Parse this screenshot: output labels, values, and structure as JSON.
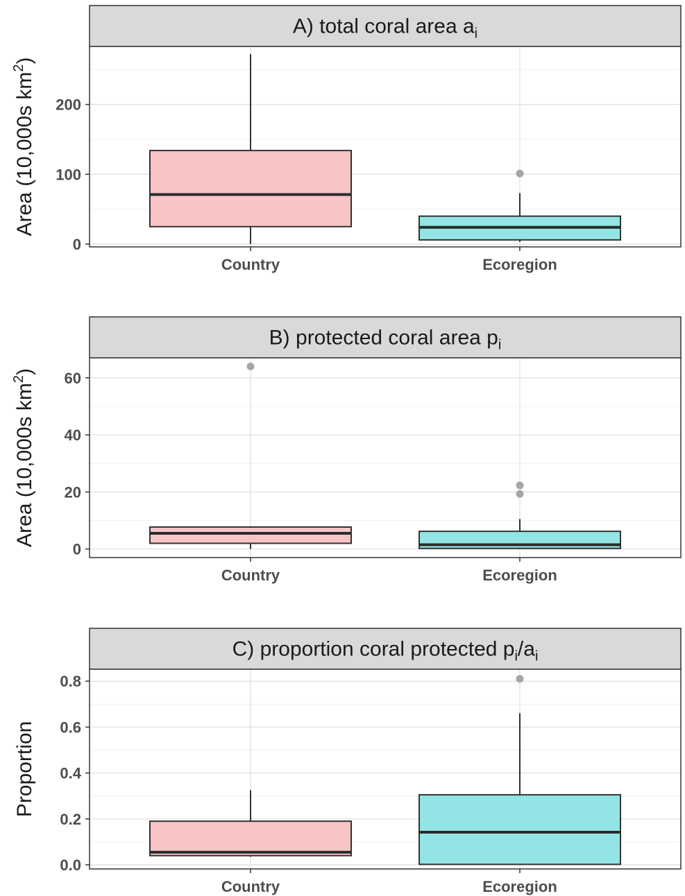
{
  "colors": {
    "Country": "#f8c4c6",
    "Ecoregion": "#93e4e4",
    "strip_fill": "#d9d9d9",
    "outlier": "#a6a6a6"
  },
  "chart_data": [
    {
      "type": "box",
      "title_main": "A) total coral area a",
      "title_sub": "i",
      "title_tail": "",
      "ylabel_main": "Area (10,000s km",
      "ylabel_sup": "2",
      "ylabel_tail": ")",
      "ylim": [
        -4,
        283
      ],
      "yticks": [
        0,
        100,
        200
      ],
      "ytick_labels": [
        "0",
        "100",
        "200"
      ],
      "categories": [
        "Country",
        "Ecoregion"
      ],
      "boxes": [
        {
          "category": "Country",
          "whisker_low": 0,
          "q1": 25,
          "median": 71,
          "q3": 134,
          "whisker_high": 272,
          "outliers": []
        },
        {
          "category": "Ecoregion",
          "whisker_low": 3,
          "q1": 6,
          "median": 24,
          "q3": 40,
          "whisker_high": 73,
          "outliers": [
            101
          ]
        }
      ]
    },
    {
      "type": "box",
      "title_main": "B) protected coral area p",
      "title_sub": "i",
      "title_tail": "",
      "ylabel_main": "Area (10,000s km",
      "ylabel_sup": "2",
      "ylabel_tail": ")",
      "ylim": [
        -3,
        67
      ],
      "yticks": [
        0,
        20,
        40,
        60
      ],
      "ytick_labels": [
        "0",
        "20",
        "40",
        "60"
      ],
      "categories": [
        "Country",
        "Ecoregion"
      ],
      "boxes": [
        {
          "category": "Country",
          "whisker_low": 0,
          "q1": 2,
          "median": 5.5,
          "q3": 7.7,
          "whisker_high": 7.7,
          "outliers": [
            64
          ]
        },
        {
          "category": "Ecoregion",
          "whisker_low": 0,
          "q1": 0.2,
          "median": 1.5,
          "q3": 6.2,
          "whisker_high": 10.5,
          "outliers": [
            19.3,
            22.3
          ]
        }
      ]
    },
    {
      "type": "box",
      "title_main": "C) proportion coral protected p",
      "title_sub": "i",
      "title_tail": "/a",
      "title_sub2": "i",
      "ylabel_main": "Proportion",
      "ylabel_sup": "",
      "ylabel_tail": "",
      "ylim": [
        -0.018,
        0.852
      ],
      "yticks": [
        0,
        0.2,
        0.4,
        0.6,
        0.8
      ],
      "ytick_labels": [
        "0.0",
        "0.2",
        "0.4",
        "0.6",
        "0.8"
      ],
      "categories": [
        "Country",
        "Ecoregion"
      ],
      "boxes": [
        {
          "category": "Country",
          "whisker_low": 0.035,
          "q1": 0.04,
          "median": 0.055,
          "q3": 0.19,
          "whisker_high": 0.325,
          "outliers": []
        },
        {
          "category": "Ecoregion",
          "whisker_low": 0,
          "q1": 0.002,
          "median": 0.142,
          "q3": 0.305,
          "whisker_high": 0.66,
          "outliers": [
            0.81
          ]
        }
      ]
    }
  ]
}
